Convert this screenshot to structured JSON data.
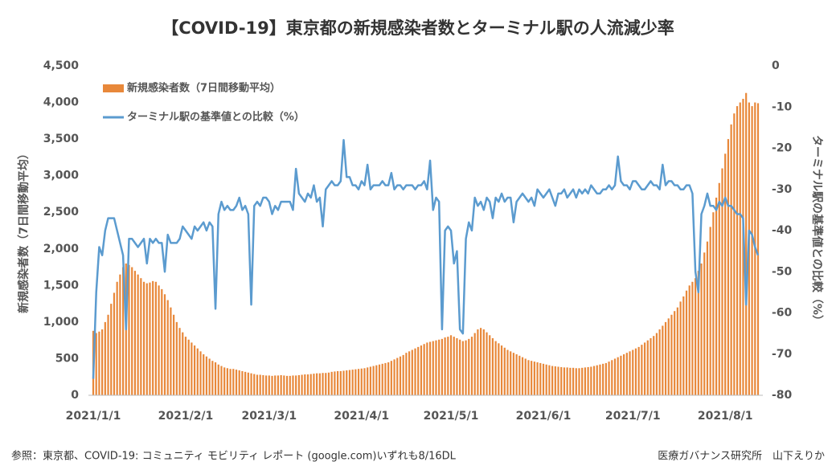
{
  "chart_data": {
    "type": "bar",
    "title": "【COVID-19】東京都の新規感染者数とターミナル駅の人流減少率",
    "y_label": "新規感染者数（7日間移動平均）",
    "y2_label": "ターミナル駅の基準値との比較（%）",
    "source": "参照：東京都、COVID-19: コミュニティ モビリティ レポート (google.com)いずれも8/16DL",
    "credit": "医療ガバナンス研究所　山下えりか",
    "grid": false,
    "legend": "top-left",
    "categories": [
      "2021/1/1",
      null,
      null,
      null,
      null,
      null,
      null,
      null,
      null,
      null,
      null,
      null,
      null,
      null,
      null,
      null,
      null,
      null,
      null,
      null,
      null,
      null,
      null,
      null,
      null,
      null,
      null,
      null,
      null,
      null,
      null,
      "2021/2/1",
      null,
      null,
      null,
      null,
      null,
      null,
      null,
      null,
      null,
      null,
      null,
      null,
      null,
      null,
      null,
      null,
      null,
      null,
      null,
      null,
      null,
      null,
      null,
      null,
      null,
      null,
      null,
      "2021/3/1",
      null,
      null,
      null,
      null,
      null,
      null,
      null,
      null,
      null,
      null,
      null,
      null,
      null,
      null,
      null,
      null,
      null,
      null,
      null,
      null,
      null,
      null,
      null,
      null,
      null,
      null,
      null,
      null,
      null,
      null,
      "2021/4/1",
      null,
      null,
      null,
      null,
      null,
      null,
      null,
      null,
      null,
      null,
      null,
      null,
      null,
      null,
      null,
      null,
      null,
      null,
      null,
      null,
      null,
      null,
      null,
      null,
      null,
      null,
      null,
      null,
      null,
      "2021/5/1",
      null,
      null,
      null,
      null,
      null,
      null,
      null,
      null,
      null,
      null,
      null,
      null,
      null,
      null,
      null,
      null,
      null,
      null,
      null,
      null,
      null,
      null,
      null,
      null,
      null,
      null,
      null,
      null,
      null,
      null,
      "2021/6/1",
      null,
      null,
      null,
      null,
      null,
      null,
      null,
      null,
      null,
      null,
      null,
      null,
      null,
      null,
      null,
      null,
      null,
      null,
      null,
      null,
      null,
      null,
      null,
      null,
      null,
      null,
      null,
      null,
      null,
      "2021/7/1",
      null,
      null,
      null,
      null,
      null,
      null,
      null,
      null,
      null,
      null,
      null,
      null,
      null,
      null,
      null,
      null,
      null,
      null,
      null,
      null,
      null,
      null,
      null,
      null,
      null,
      null,
      null,
      null,
      null,
      null,
      "2021/8/1",
      null,
      null,
      null,
      null,
      null,
      null,
      null,
      null,
      null,
      null,
      null
    ],
    "series": [
      {
        "name": "新規感染者数（7日間移動平均）",
        "type": "bar",
        "color": "#e8883a",
        "values": [
          880,
          850,
          870,
          900,
          1000,
          1100,
          1250,
          1400,
          1550,
          1650,
          1750,
          1800,
          1780,
          1750,
          1700,
          1650,
          1600,
          1550,
          1530,
          1540,
          1560,
          1550,
          1500,
          1450,
          1380,
          1300,
          1200,
          1100,
          1000,
          920,
          860,
          800,
          760,
          720,
          680,
          640,
          600,
          560,
          530,
          500,
          470,
          450,
          420,
          400,
          380,
          370,
          360,
          360,
          350,
          340,
          330,
          320,
          310,
          300,
          290,
          280,
          280,
          275,
          270,
          270,
          265,
          270,
          270,
          275,
          270,
          265,
          265,
          270,
          270,
          275,
          280,
          285,
          285,
          290,
          295,
          300,
          300,
          305,
          305,
          310,
          320,
          325,
          330,
          330,
          335,
          340,
          345,
          350,
          355,
          360,
          365,
          370,
          380,
          390,
          400,
          410,
          420,
          430,
          440,
          450,
          470,
          490,
          510,
          530,
          550,
          580,
          600,
          620,
          640,
          660,
          680,
          700,
          720,
          730,
          740,
          750,
          760,
          770,
          790,
          800,
          820,
          800,
          780,
          760,
          740,
          750,
          770,
          800,
          850,
          900,
          920,
          900,
          860,
          820,
          780,
          740,
          710,
          680,
          650,
          620,
          600,
          580,
          560,
          540,
          520,
          500,
          480,
          470,
          460,
          450,
          440,
          430,
          420,
          410,
          400,
          395,
          390,
          385,
          380,
          380,
          375,
          375,
          370,
          370,
          375,
          380,
          385,
          390,
          400,
          410,
          420,
          430,
          440,
          460,
          480,
          500,
          520,
          540,
          560,
          580,
          600,
          620,
          640,
          660,
          690,
          720,
          750,
          780,
          810,
          850,
          900,
          950,
          1000,
          1050,
          1100,
          1150,
          1200,
          1280,
          1350,
          1430,
          1500,
          1550,
          1600,
          1700,
          1800,
          1950,
          2100,
          2300,
          2500,
          2700,
          2900,
          3100,
          3300,
          3500,
          3700,
          3850,
          3950,
          4000,
          4050,
          4130,
          4000,
          3950,
          4000,
          3990
        ]
      },
      {
        "name": "ターミナル駅の基準値との比較（%）",
        "type": "line",
        "axis": "y2",
        "color": "#5b9bcf",
        "values": [
          -76,
          -55,
          -44,
          -46,
          -40,
          -37,
          -37,
          -37,
          -40,
          -43,
          -46,
          -64,
          -42,
          -42,
          -43,
          -44,
          -43,
          -42,
          -48,
          -42,
          -43,
          -42,
          -43,
          -43,
          -50,
          -41,
          -43,
          -43,
          -43,
          -42,
          -39,
          -40,
          -41,
          -42,
          -39,
          -40,
          -39,
          -38,
          -40,
          -38,
          -39,
          -59,
          -36,
          -33,
          -35,
          -34,
          -35,
          -35,
          -34,
          -32,
          -35,
          -34,
          -36,
          -58,
          -34,
          -33,
          -34,
          -32,
          -32,
          -33,
          -36,
          -34,
          -35,
          -33,
          -33,
          -33,
          -33,
          -35,
          -25,
          -31,
          -32,
          -33,
          -31,
          -32,
          -29,
          -33,
          -32,
          -39,
          -30,
          -29,
          -28,
          -29,
          -29,
          -28,
          -18,
          -27,
          -27,
          -29,
          -29,
          -30,
          -28,
          -29,
          -24,
          -30,
          -29,
          -29,
          -29,
          -28,
          -29,
          -29,
          -26,
          -30,
          -29,
          -29,
          -30,
          -29,
          -29,
          -29,
          -30,
          -29,
          -29,
          -28,
          -30,
          -23,
          -35,
          -32,
          -33,
          -64,
          -40,
          -39,
          -40,
          -48,
          -45,
          -64,
          -65,
          -42,
          -38,
          -40,
          -32,
          -34,
          -33,
          -35,
          -32,
          -33,
          -37,
          -32,
          -33,
          -31,
          -33,
          -32,
          -32,
          -38,
          -33,
          -32,
          -31,
          -32,
          -33,
          -32,
          -34,
          -30,
          -31,
          -32,
          -31,
          -30,
          -32,
          -34,
          -31,
          -31,
          -30,
          -32,
          -31,
          -30,
          -32,
          -30,
          -31,
          -30,
          -31,
          -29,
          -30,
          -31,
          -31,
          -30,
          -30,
          -29,
          -30,
          -29,
          -22,
          -28,
          -29,
          -29,
          -30,
          -28,
          -28,
          -29,
          -30,
          -30,
          -29,
          -28,
          -29,
          -29,
          -30,
          -24,
          -29,
          -28,
          -28,
          -29,
          -29,
          -30,
          -30,
          -29,
          -29,
          -31,
          -50,
          -55,
          -36,
          -34,
          -31,
          -34,
          -34,
          -35,
          -33,
          -34,
          -32,
          -34,
          -34,
          -35,
          -36,
          -36,
          -37,
          -58,
          -40,
          -41,
          -44,
          -46
        ]
      }
    ],
    "ylim": [
      0,
      4500
    ],
    "yticks": [
      0,
      500,
      {
        "value": 1000,
        "label": "1,000"
      },
      {
        "value": 1500,
        "label": "1,500"
      },
      {
        "value": 2000,
        "label": "2,000"
      },
      {
        "value": 2500,
        "label": "2,500"
      },
      {
        "value": 3000,
        "label": "3,000"
      },
      {
        "value": 3500,
        "label": "3,500"
      },
      {
        "value": 4000,
        "label": "4,000"
      },
      {
        "value": 4500,
        "label": "4,500"
      }
    ],
    "y2lim": [
      -80,
      0
    ],
    "y2ticks": [
      0,
      -10,
      -20,
      -30,
      -40,
      -50,
      -60,
      -70,
      -80
    ]
  }
}
